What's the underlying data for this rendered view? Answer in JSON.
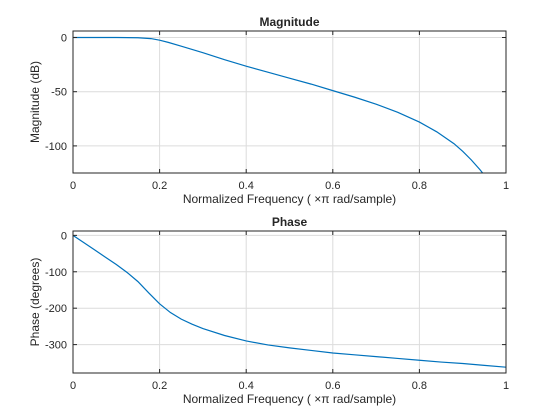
{
  "chart_data": [
    {
      "type": "line",
      "title": "Magnitude",
      "xlabel": "Normalized  Frequency    ( ×π  rad/sample)",
      "ylabel": "Magnitude (dB)",
      "xlim": [
        0,
        1
      ],
      "ylim": [
        -125,
        6
      ],
      "xticks": [
        0,
        0.2,
        0.4,
        0.6,
        0.8,
        1
      ],
      "xtick_labels": [
        "0",
        "0.2",
        "0.4",
        "0.6",
        "0.8",
        "1"
      ],
      "yticks": [
        0,
        -50,
        -100
      ],
      "ytick_labels": [
        "0",
        "-50",
        "-100"
      ],
      "grid": true,
      "color": "#0072BD",
      "series": [
        {
          "x": [
            0,
            0.05,
            0.1,
            0.15,
            0.18,
            0.2,
            0.22,
            0.25,
            0.3,
            0.35,
            0.4,
            0.45,
            0.5,
            0.55,
            0.6,
            0.65,
            0.7,
            0.75,
            0.8,
            0.84,
            0.88,
            0.9,
            0.92,
            0.94,
            0.95
          ],
          "y": [
            0,
            0,
            0,
            -0.2,
            -1,
            -2.5,
            -4.5,
            -8,
            -14,
            -20.5,
            -26.5,
            -32,
            -37.5,
            -43,
            -49,
            -55,
            -61.5,
            -69,
            -78,
            -87,
            -98,
            -105,
            -113,
            -122,
            -127
          ]
        }
      ]
    },
    {
      "type": "line",
      "title": "Phase",
      "xlabel": "Normalized  Frequency    ( ×π  rad/sample)",
      "ylabel": "Phase (degrees)",
      "xlim": [
        0,
        1
      ],
      "ylim": [
        -378,
        12
      ],
      "xticks": [
        0,
        0.2,
        0.4,
        0.6,
        0.8,
        1
      ],
      "xtick_labels": [
        "0",
        "0.2",
        "0.4",
        "0.6",
        "0.8",
        "1"
      ],
      "yticks": [
        0,
        -100,
        -200,
        -300
      ],
      "ytick_labels": [
        "0",
        "-100",
        "-200",
        "-300"
      ],
      "grid": true,
      "color": "#0072BD",
      "series": [
        {
          "x": [
            0,
            0.025,
            0.05,
            0.075,
            0.1,
            0.125,
            0.15,
            0.175,
            0.2,
            0.225,
            0.25,
            0.275,
            0.3,
            0.35,
            0.4,
            0.45,
            0.5,
            0.55,
            0.6,
            0.65,
            0.7,
            0.75,
            0.8,
            0.85,
            0.9,
            0.95,
            1
          ],
          "y": [
            0,
            -20,
            -40,
            -60,
            -80,
            -102,
            -127,
            -158,
            -188,
            -212,
            -230,
            -244,
            -256,
            -275,
            -290,
            -301,
            -309,
            -316,
            -323,
            -328,
            -333,
            -338,
            -343,
            -348,
            -352,
            -357,
            -362
          ]
        }
      ]
    }
  ]
}
